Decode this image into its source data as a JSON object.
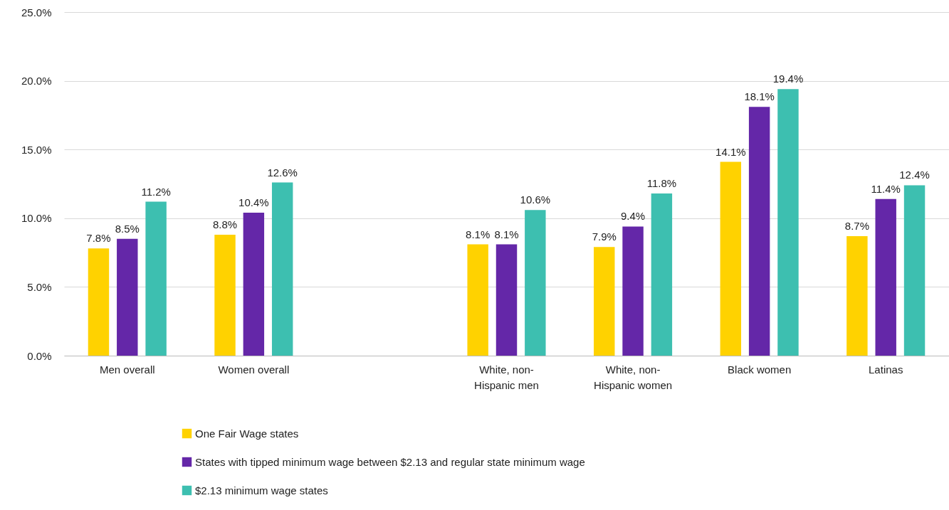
{
  "chart_data": {
    "type": "bar",
    "categories": [
      "Men overall",
      "Women overall",
      null,
      "White, non-Hispanic men",
      "White, non-Hispanic women",
      "Black women",
      "Latinas"
    ],
    "series": [
      {
        "name": "One Fair Wage states",
        "color": "#ffd200",
        "values": [
          7.8,
          8.8,
          null,
          8.1,
          7.9,
          14.1,
          8.7
        ],
        "value_labels": [
          "7.8%",
          "8.8%",
          null,
          "8.1%",
          "7.9%",
          "14.1%",
          "8.7%"
        ]
      },
      {
        "name": "States with tipped minimum wage between $2.13 and regular state minimum wage",
        "color": "#6427a8",
        "values": [
          8.5,
          10.4,
          null,
          8.1,
          9.4,
          18.1,
          11.4
        ],
        "value_labels": [
          "8.5%",
          "10.4%",
          null,
          "8.1%",
          "9.4%",
          "18.1%",
          "11.4%"
        ]
      },
      {
        "name": "$2.13 minimum wage states",
        "color": "#3dbfb0",
        "values": [
          11.2,
          12.6,
          null,
          10.6,
          11.8,
          19.4,
          12.4
        ],
        "value_labels": [
          "11.2%",
          "12.6%",
          null,
          "10.6%",
          "11.8%",
          "19.4%",
          "12.4%"
        ]
      }
    ],
    "ylim": [
      0,
      25
    ],
    "yticks": [
      {
        "value": 0,
        "label": "0.0%"
      },
      {
        "value": 5,
        "label": "5.0%"
      },
      {
        "value": 10,
        "label": "10.0%"
      },
      {
        "value": 15,
        "label": "15.0%"
      },
      {
        "value": 20,
        "label": "20.0%"
      },
      {
        "value": 25,
        "label": "25.0%"
      }
    ],
    "grid": "y",
    "legend": "bottom"
  }
}
